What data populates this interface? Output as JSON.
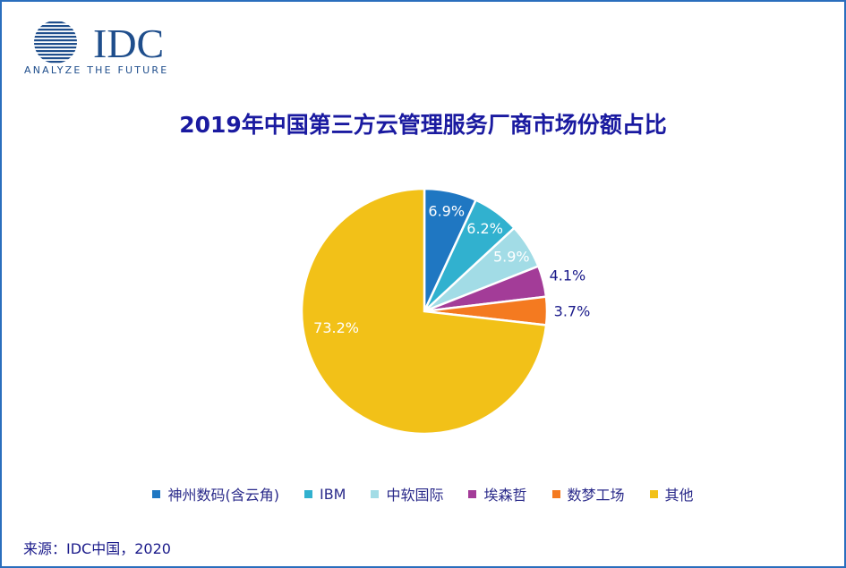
{
  "logo": {
    "wordmark": "IDC",
    "tagline": "ANALYZE THE FUTURE",
    "brand_color": "#1f4e8c"
  },
  "chart_data": {
    "type": "pie",
    "title": "2019年中国第三方云管理服务厂商市场份额占比",
    "categories": [
      "神州数码(含云角)",
      "IBM",
      "中软国际",
      "埃森哲",
      "数梦工场",
      "其他"
    ],
    "values": [
      6.9,
      6.2,
      5.9,
      4.1,
      3.7,
      73.2
    ],
    "data_labels": [
      "6.9%",
      "6.2%",
      "5.9%",
      "4.1%",
      "3.7%",
      "73.2%"
    ],
    "colors": [
      "#1f77c2",
      "#31b1cf",
      "#a2dce6",
      "#a33c98",
      "#f47a20",
      "#f2c118"
    ],
    "start_angle": "12 o'clock",
    "direction": "clockwise",
    "legend_position": "bottom"
  },
  "source": "来源：IDC中国，2020"
}
